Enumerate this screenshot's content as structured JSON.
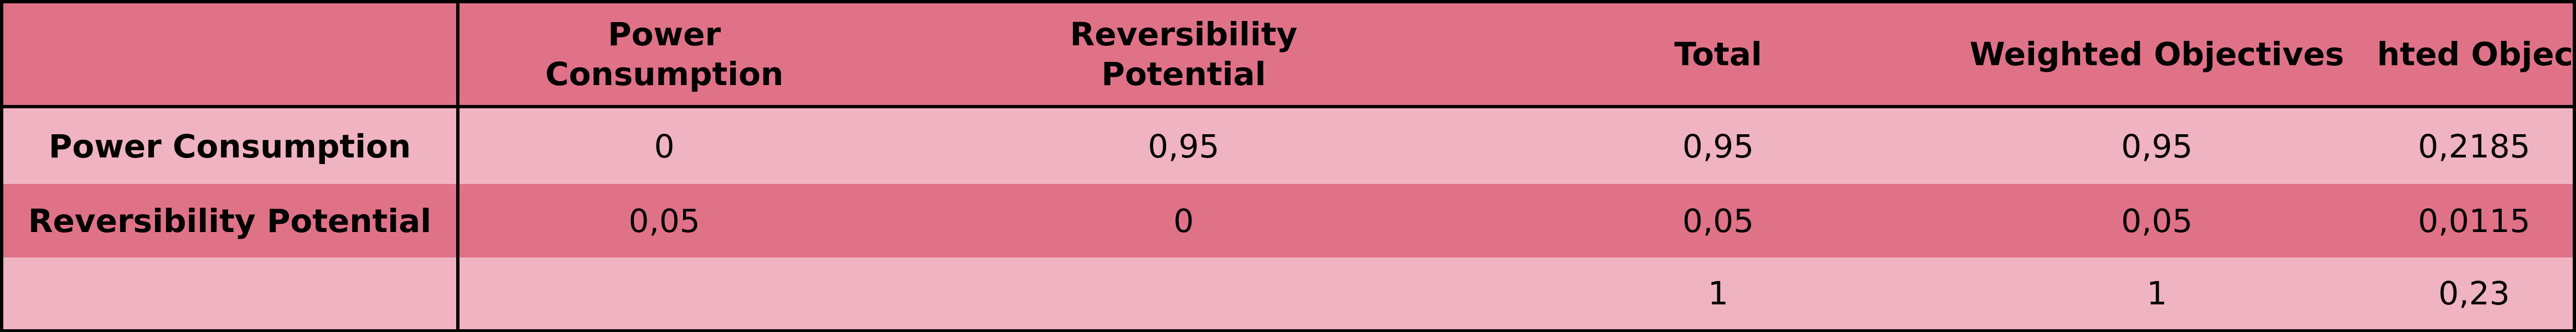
{
  "table": {
    "header": {
      "corner": "",
      "power_consumption_line1": "Power",
      "power_consumption_line2": "Consumption",
      "reversibility_line1": "Reversibility",
      "reversibility_line2": "Potential",
      "total": "Total",
      "weighted_objectives_1": "Weighted Objectives",
      "weighted_objectives_2": "Weighted Objectives"
    },
    "rows": [
      {
        "label": "Power Consumption",
        "power_consumption": "0",
        "reversibility_potential": "0,95",
        "total": "0,95",
        "weighted_objectives_1": "0,95",
        "weighted_objectives_2": "0,2185"
      },
      {
        "label": "Reversibility Potential",
        "power_consumption": "0,05",
        "reversibility_potential": "0",
        "total": "0,05",
        "weighted_objectives_1": "0,05",
        "weighted_objectives_2": "0,0115"
      },
      {
        "label": "",
        "power_consumption": "",
        "reversibility_potential": "",
        "total": "1",
        "weighted_objectives_1": "1",
        "weighted_objectives_2": "0,23"
      }
    ]
  },
  "colors": {
    "dark_row": "#e07288",
    "light_row": "#f0b3c1",
    "border": "#000000"
  }
}
